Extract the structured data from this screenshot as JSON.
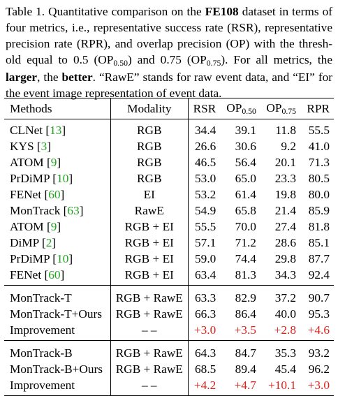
{
  "caption": {
    "line1_pre": "Table 1. Quantitative comparison on the ",
    "line1_dataset": "FE108",
    "line1_post": " dataset in terms of",
    "line2": "four metrics, i.e., representative success rate (RSR), representative",
    "line3": "precision rate (RPR), and overlap precision (OP) with the thresh-",
    "line4_a": "old equal to 0.5 (OP",
    "line4_sub1": "0.50",
    "line4_b": ") and 0.75 (OP",
    "line4_sub2": "0.75",
    "line4_c": "). For all metrics, the",
    "line5_larger": "larger",
    "line5_mid": ", the ",
    "line5_better": "better",
    "line5_post": ". “RawE” stands for raw event data, and “EI” for",
    "line6": "the event image representation of event data."
  },
  "table": {
    "headers": {
      "methods": "Methods",
      "modality": "Modality",
      "rsr": "RSR",
      "op50_main": "OP",
      "op50_sub": "0.50",
      "op75_main": "OP",
      "op75_sub": "0.75",
      "rpr": "RPR"
    },
    "rows": [
      {
        "name": "CLNet",
        "cite": "13",
        "modality": "RGB",
        "rsr": "34.4",
        "op50": "39.1",
        "op75": "11.8",
        "rpr": "55.5"
      },
      {
        "name": "KYS",
        "cite": "3",
        "modality": "RGB",
        "rsr": "26.6",
        "op50": "30.6",
        "op75": "9.2",
        "rpr": "41.0"
      },
      {
        "name": "ATOM",
        "cite": "9",
        "modality": "RGB",
        "rsr": "46.5",
        "op50": "56.4",
        "op75": "20.1",
        "rpr": "71.3"
      },
      {
        "name": "PrDiMP",
        "cite": "10",
        "modality": "RGB",
        "rsr": "53.0",
        "op50": "65.0",
        "op75": "23.3",
        "rpr": "80.5"
      },
      {
        "name": "FENet",
        "cite": "60",
        "modality": "EI",
        "rsr": "53.2",
        "op50": "61.4",
        "op75": "19.8",
        "rpr": "80.0"
      },
      {
        "name": "MonTrack",
        "cite": "63",
        "modality": "RawE",
        "rsr": "54.9",
        "op50": "65.8",
        "op75": "21.4",
        "rpr": "85.9"
      },
      {
        "name": "ATOM",
        "cite": "9",
        "modality": "RGB + EI",
        "rsr": "55.5",
        "op50": "70.0",
        "op75": "27.4",
        "rpr": "81.8"
      },
      {
        "name": "DiMP",
        "cite": "2",
        "modality": "RGB + EI",
        "rsr": "57.1",
        "op50": "71.2",
        "op75": "28.6",
        "rpr": "85.1"
      },
      {
        "name": "PrDiMP",
        "cite": "10",
        "modality": "RGB + EI",
        "rsr": "59.0",
        "op50": "74.4",
        "op75": "29.8",
        "rpr": "87.7"
      },
      {
        "name": "FENet",
        "cite": "60",
        "modality": "RGB + EI",
        "rsr": "63.4",
        "op50": "81.3",
        "op75": "34.3",
        "rpr": "92.4"
      }
    ],
    "groupT": [
      {
        "name": "MonTrack-T",
        "modality": "RGB + RawE",
        "rsr": "63.3",
        "op50": "82.9",
        "op75": "37.2",
        "rpr": "90.7"
      },
      {
        "name": "MonTrack-T+Ours",
        "modality": "RGB + RawE",
        "rsr": "66.3",
        "op50": "86.4",
        "op75": "40.0",
        "rpr": "95.3"
      }
    ],
    "improvementT": {
      "label": "Improvement",
      "modality": "– –",
      "rsr": "+3.0",
      "op50": "+3.5",
      "op75": "+2.8",
      "rpr": "+4.6"
    },
    "groupB": [
      {
        "name": "MonTrack-B",
        "modality": "RGB + RawE",
        "rsr": "64.3",
        "op50": "84.7",
        "op75": "35.3",
        "rpr": "93.2"
      },
      {
        "name": "MonTrack-B+Ours",
        "modality": "RGB + RawE",
        "rsr": "68.5",
        "op50": "89.4",
        "op75": "45.4",
        "rpr": "96.2"
      }
    ],
    "improvementB": {
      "label": "Improvement",
      "modality": "– –",
      "rsr": "+4.2",
      "op50": "+4.7",
      "op75": "+10.1",
      "rpr": "+3.0"
    }
  },
  "colors": {
    "citation": "#1fa51f",
    "improvement": "#e0201a"
  }
}
